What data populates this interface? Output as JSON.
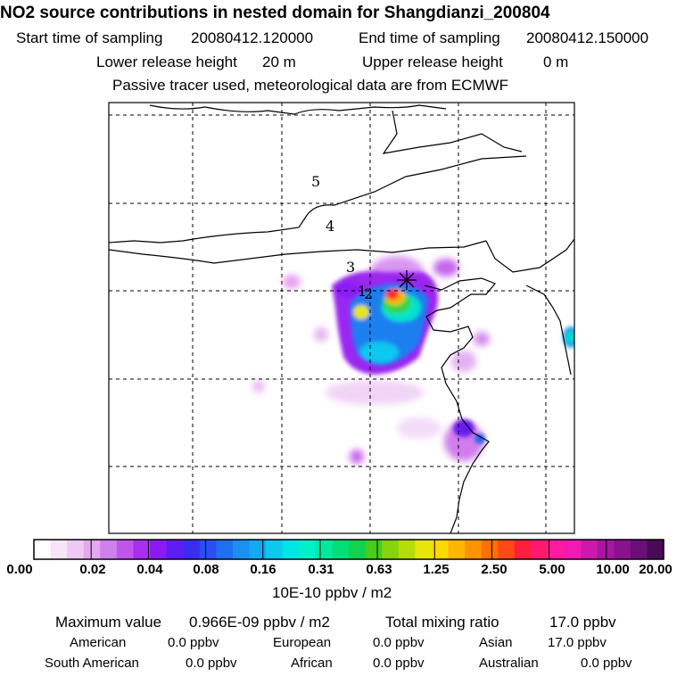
{
  "header": {
    "title": "NO2 source contributions in nested domain for Shangdianzi_200804",
    "start_label": "Start time of sampling",
    "start_value": "20080412.120000",
    "end_label": "End time of sampling",
    "end_value": "20080412.150000",
    "lower_label": "Lower release height",
    "lower_value": "20 m",
    "upper_label": "Upper release height",
    "upper_value": "0 m",
    "note": "Passive tracer used, meteorological data are from ECMWF"
  },
  "chart_data": {
    "type": "heatmap",
    "title": "NO2 source contributions in nested domain for Shangdianzi_200804",
    "grid": true,
    "station_marker": "asterisk",
    "contour_labels": [
      "5",
      "4",
      "3",
      "1",
      "2"
    ],
    "colorbar": {
      "ticks": [
        "0.00",
        "0.02",
        "0.04",
        "0.08",
        "0.16",
        "0.31",
        "0.63",
        "1.25",
        "2.50",
        "5.00",
        "10.00",
        "20.00"
      ],
      "unit": "10E-10 ppbv / m2",
      "colors": [
        "#ffffff",
        "#f7e4f9",
        "#efc9f4",
        "#e3a8ef",
        "#d080ec",
        "#bf55ec",
        "#a92ef0",
        "#8a1af5",
        "#5e1cf2",
        "#3a2df0",
        "#2a4ef0",
        "#1f6ff0",
        "#1b8ff2",
        "#12aaf2",
        "#0fc8f0",
        "#00e5e5",
        "#00f0c8",
        "#00e8a0",
        "#00de78",
        "#12d24e",
        "#47cc1e",
        "#85d40d",
        "#b8dc0a",
        "#e6e60a",
        "#ffd800",
        "#ffb600",
        "#ff9300",
        "#ff6f00",
        "#ff4a18",
        "#ff1e3c",
        "#ff1a6e",
        "#ff1aa0",
        "#f01ab4",
        "#cc18ac",
        "#aa15a0",
        "#8a1290",
        "#6a0e78",
        "#4a0a58"
      ]
    }
  },
  "footer": {
    "max_label": "Maximum value",
    "max_value": "0.966E-09 ppbv / m2",
    "total_label": "Total mixing ratio",
    "total_value": "17.0 ppbv",
    "regions": [
      {
        "label": "American",
        "value": "0.0 ppbv"
      },
      {
        "label": "European",
        "value": "0.0 ppbv"
      },
      {
        "label": "Asian",
        "value": "17.0 ppbv"
      },
      {
        "label": "South American",
        "value": "0.0 ppbv"
      },
      {
        "label": "African",
        "value": "0.0 ppbv"
      },
      {
        "label": "Australian",
        "value": "0.0 ppbv"
      }
    ]
  }
}
